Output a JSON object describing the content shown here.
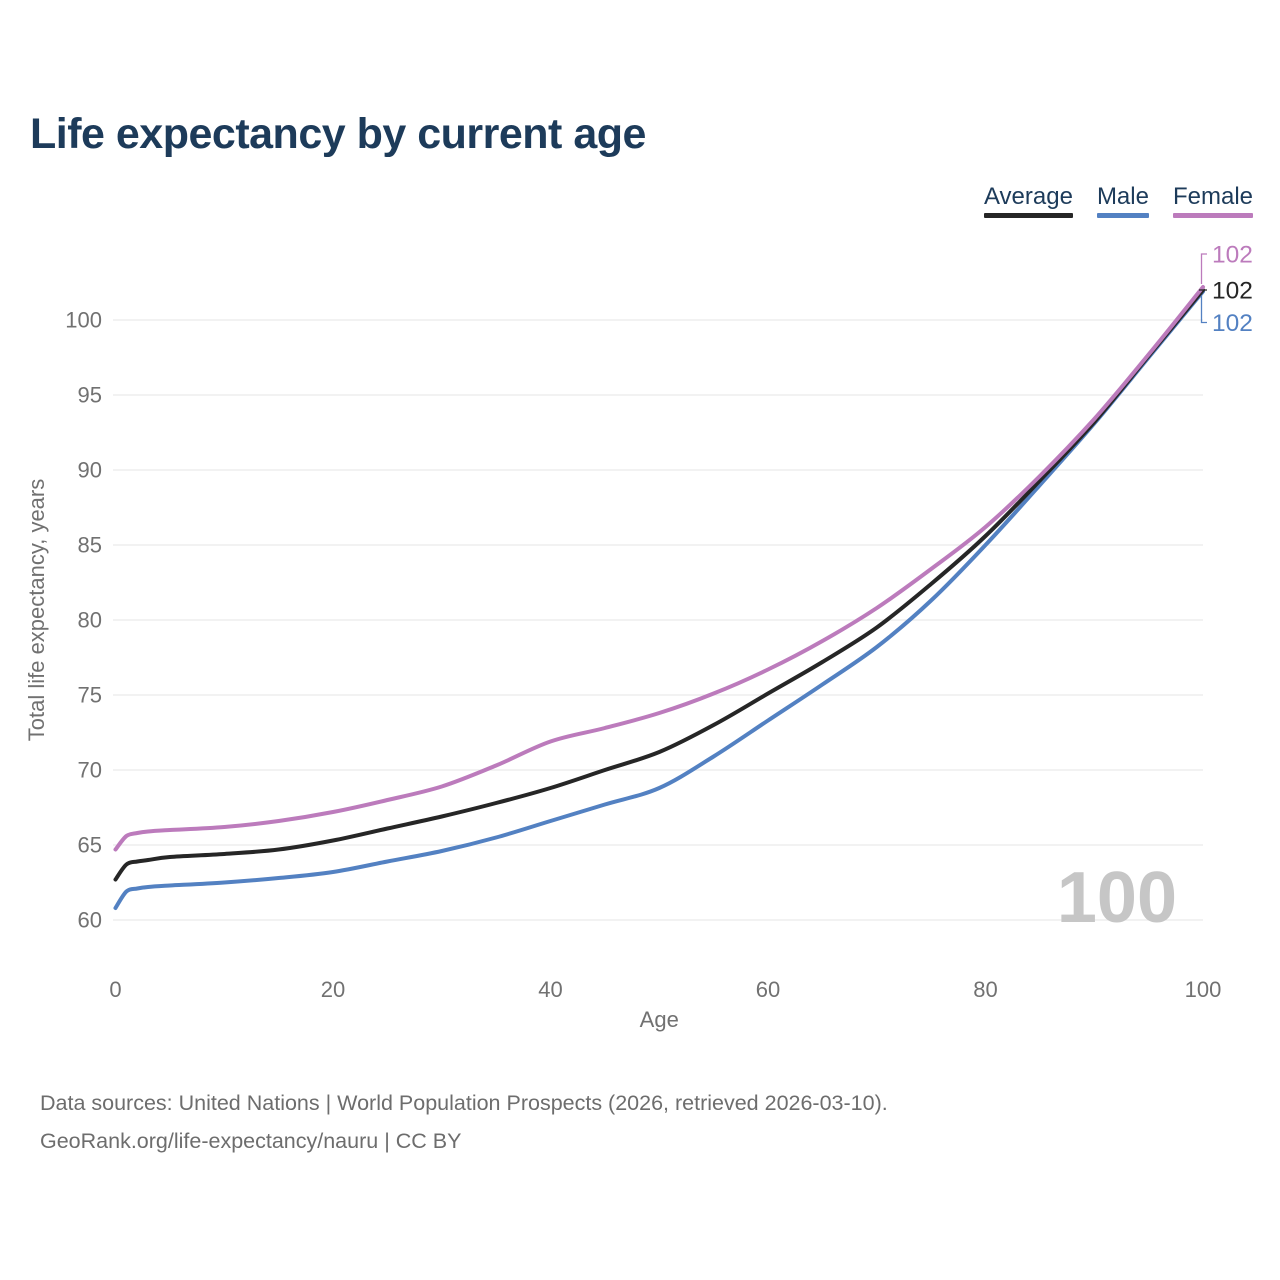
{
  "header": {
    "title": "Life expectancy by current age"
  },
  "legend": {
    "items": [
      "Average",
      "Male",
      "Female"
    ]
  },
  "chart_data": {
    "type": "line",
    "title": "Life expectancy by current age",
    "xlabel": "Age",
    "ylabel": "Total life expectancy, years",
    "x_ticks": [
      0,
      20,
      40,
      60,
      80,
      100
    ],
    "y_ticks": [
      60,
      65,
      70,
      75,
      80,
      85,
      90,
      95,
      100
    ],
    "xlim": [
      0,
      100
    ],
    "ylim": [
      58.5,
      104
    ],
    "grid": "horizontal-only",
    "legend_position": "top-right",
    "watermark": "100",
    "x": [
      0,
      1,
      2,
      3,
      5,
      10,
      15,
      20,
      25,
      30,
      35,
      40,
      45,
      50,
      55,
      60,
      65,
      70,
      75,
      80,
      85,
      90,
      95,
      100
    ],
    "series": [
      {
        "name": "Average",
        "color": "#262626",
        "end_label": "102",
        "values": [
          62.7,
          63.7,
          63.9,
          64.0,
          64.2,
          64.4,
          64.7,
          65.3,
          66.1,
          66.9,
          67.8,
          68.8,
          70.0,
          71.2,
          73.0,
          75.1,
          77.2,
          79.5,
          82.4,
          85.6,
          89.3,
          93.2,
          97.6,
          102.0
        ]
      },
      {
        "name": "Male",
        "color": "#5381c2",
        "end_label": "102",
        "values": [
          60.8,
          61.9,
          62.1,
          62.2,
          62.3,
          62.5,
          62.8,
          63.2,
          63.9,
          64.6,
          65.5,
          66.6,
          67.7,
          68.8,
          70.9,
          73.3,
          75.7,
          78.2,
          81.3,
          85.0,
          89.0,
          93.1,
          97.5,
          101.9
        ]
      },
      {
        "name": "Female",
        "color": "#bc7bbc",
        "end_label": "102",
        "values": [
          64.7,
          65.6,
          65.8,
          65.9,
          66.0,
          66.2,
          66.6,
          67.2,
          68.0,
          68.9,
          70.3,
          71.9,
          72.8,
          73.8,
          75.1,
          76.7,
          78.6,
          80.8,
          83.4,
          86.2,
          89.6,
          93.4,
          97.7,
          102.2
        ]
      }
    ]
  },
  "footer": {
    "line1": "Data sources: United Nations | World Population Prospects (2026, retrieved 2026-03-10).",
    "line2": "GeoRank.org/life-expectancy/nauru | CC BY"
  },
  "colors": {
    "title_text": "#1d3b5a",
    "legend_text": "#1d3b5a",
    "axis_text": "#717171",
    "grid_line": "#ebebeb",
    "watermark_text": "#c6c6c6",
    "footer_text": "#6d6d6d"
  }
}
